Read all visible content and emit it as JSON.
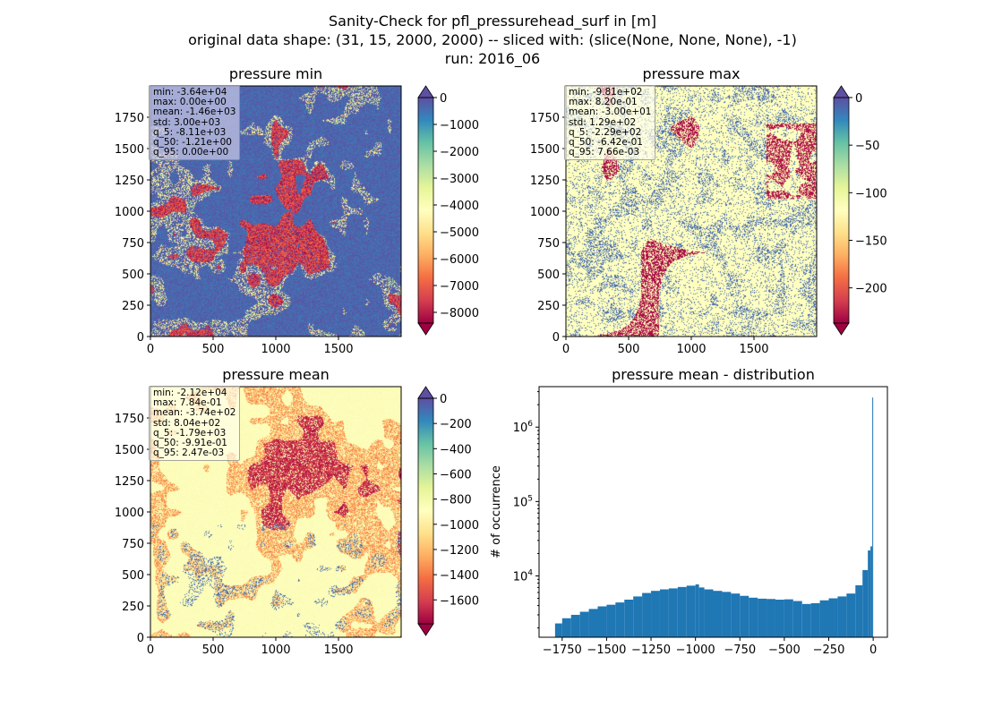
{
  "figure": {
    "title_lines": [
      "Sanity-Check for pfl_pressurehead_surf in [m]",
      "original data shape: (31, 15, 2000, 2000) -- sliced with: (slice(None, None, None), -1)",
      "run: 2016_06"
    ]
  },
  "chart_data": [
    {
      "type": "heatmap",
      "title": "pressure min",
      "x_ticks": [
        0,
        500,
        1000,
        1500
      ],
      "y_ticks": [
        0,
        250,
        500,
        750,
        1000,
        1250,
        1500,
        1750
      ],
      "xlim": [
        0,
        2000
      ],
      "ylim": [
        0,
        2000
      ],
      "colorbar": {
        "ticks": [
          0,
          -1000,
          -2000,
          -3000,
          -4000,
          -5000,
          -6000,
          -7000,
          -8000
        ],
        "range": [
          -8400,
          0
        ],
        "extend": "both",
        "colormap": "Spectral"
      },
      "stats": [
        {
          "label": "min",
          "value": "-3.64e+04"
        },
        {
          "label": "max",
          "value": "0.00e+00"
        },
        {
          "label": "mean",
          "value": "-1.46e+03"
        },
        {
          "label": "std",
          "value": "3.00e+03"
        },
        {
          "label": "q_5",
          "value": "-8.11e+03"
        },
        {
          "label": "q_50",
          "value": "-1.21e+00"
        },
        {
          "label": "q_95",
          "value": "0.00e+00"
        }
      ]
    },
    {
      "type": "heatmap",
      "title": "pressure max",
      "x_ticks": [
        0,
        500,
        1000,
        1500
      ],
      "y_ticks": [
        0,
        250,
        500,
        750,
        1000,
        1250,
        1500,
        1750
      ],
      "xlim": [
        0,
        2000
      ],
      "ylim": [
        0,
        2000
      ],
      "colorbar": {
        "ticks": [
          0,
          -50,
          -100,
          -150,
          -200
        ],
        "range": [
          -237,
          0
        ],
        "extend": "both",
        "colormap": "Spectral"
      },
      "stats": [
        {
          "label": "min",
          "value": "-9.81e+02"
        },
        {
          "label": "max",
          "value": "8.20e-01"
        },
        {
          "label": "mean",
          "value": "-3.00e+01"
        },
        {
          "label": "std",
          "value": "1.29e+02"
        },
        {
          "label": "q_5",
          "value": "-2.29e+02"
        },
        {
          "label": "q_50",
          "value": "-6.42e-01"
        },
        {
          "label": "q_95",
          "value": "7.66e-03"
        }
      ]
    },
    {
      "type": "heatmap",
      "title": "pressure mean",
      "x_ticks": [
        0,
        500,
        1000,
        1500
      ],
      "y_ticks": [
        0,
        250,
        500,
        750,
        1000,
        1250,
        1500,
        1750
      ],
      "xlim": [
        0,
        2000
      ],
      "ylim": [
        0,
        2000
      ],
      "colorbar": {
        "ticks": [
          0,
          -200,
          -400,
          -600,
          -800,
          -1000,
          -1200,
          -1400,
          -1600
        ],
        "range": [
          -1790,
          0
        ],
        "extend": "both",
        "colormap": "Spectral"
      },
      "stats": [
        {
          "label": "min",
          "value": "-2.12e+04"
        },
        {
          "label": "max",
          "value": "7.84e-01"
        },
        {
          "label": "mean",
          "value": "-3.74e+02"
        },
        {
          "label": "std",
          "value": "8.04e+02"
        },
        {
          "label": "q_5",
          "value": "-1.79e+03"
        },
        {
          "label": "q_50",
          "value": "-9.91e-01"
        },
        {
          "label": "q_95",
          "value": "2.47e-03"
        }
      ]
    },
    {
      "type": "bar",
      "subtype": "histogram",
      "title": "pressure mean - distribution",
      "xlabel": "",
      "ylabel": "# of occurrence",
      "y_scale": "log",
      "xlim": [
        -1880,
        80
      ],
      "ylim": [
        1500,
        3500000
      ],
      "x_ticks": [
        -1750,
        -1500,
        -1250,
        -1000,
        -750,
        -500,
        -250,
        0
      ],
      "y_ticks": [
        10000,
        100000,
        1000000
      ],
      "y_tick_labels": [
        {
          "base": "10",
          "exp": "4"
        },
        {
          "base": "10",
          "exp": "5"
        },
        {
          "base": "10",
          "exp": "6"
        }
      ],
      "color": "#1f77b4",
      "bins": [
        [
          -1790,
          2300
        ],
        [
          -1750,
          2700
        ],
        [
          -1700,
          3000
        ],
        [
          -1650,
          3300
        ],
        [
          -1600,
          3600
        ],
        [
          -1550,
          3900
        ],
        [
          -1500,
          4100
        ],
        [
          -1450,
          4400
        ],
        [
          -1400,
          4800
        ],
        [
          -1350,
          5300
        ],
        [
          -1300,
          5900
        ],
        [
          -1250,
          6300
        ],
        [
          -1200,
          6600
        ],
        [
          -1150,
          6800
        ],
        [
          -1100,
          7100
        ],
        [
          -1050,
          7400
        ],
        [
          -1000,
          7700
        ],
        [
          -980,
          7000
        ],
        [
          -950,
          6600
        ],
        [
          -900,
          6300
        ],
        [
          -850,
          6100
        ],
        [
          -800,
          5800
        ],
        [
          -750,
          5400
        ],
        [
          -700,
          5100
        ],
        [
          -650,
          4950
        ],
        [
          -600,
          4900
        ],
        [
          -550,
          4800
        ],
        [
          -500,
          4850
        ],
        [
          -450,
          4600
        ],
        [
          -400,
          4200
        ],
        [
          -350,
          4300
        ],
        [
          -300,
          4700
        ],
        [
          -250,
          5000
        ],
        [
          -200,
          5300
        ],
        [
          -150,
          5800
        ],
        [
          -100,
          7500
        ],
        [
          -60,
          12000
        ],
        [
          -30,
          22000
        ],
        [
          -15,
          25000
        ],
        [
          -5,
          2500000
        ]
      ]
    }
  ],
  "colors": {
    "spectral_low": "#9e0142",
    "spectral_high": "#5e4fa2",
    "hist_bar": "#1f77b4"
  }
}
